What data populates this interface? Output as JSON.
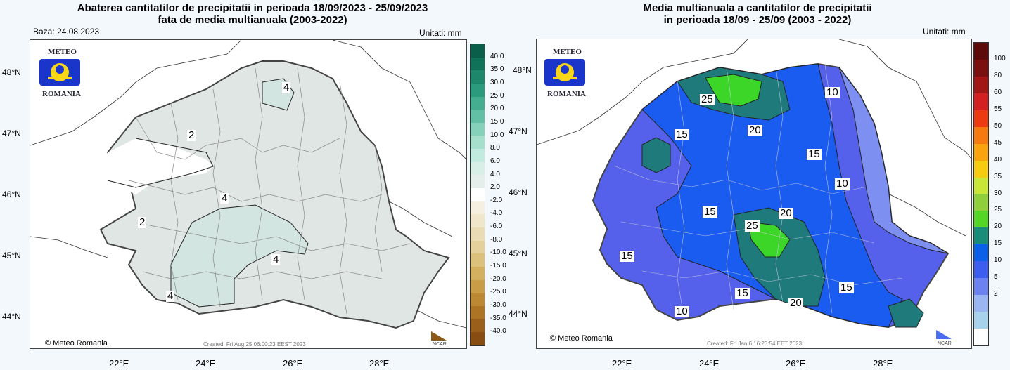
{
  "left": {
    "title_line1": "Abaterea cantitatilor de precipitatii in perioada 18/09/2023 - 25/09/2023",
    "title_line2": "fata de media multianuala (2003-2022)",
    "base": "Baza: 24.08.2023",
    "units": "Unitati: mm",
    "credit": "© Meteo Romania",
    "created": "Created: Fri Aug 25 06:00:23 EEST 2023",
    "ncar": "NCAR",
    "logo_top": "METEO",
    "logo_bottom": "ROMANIA",
    "lat_labels": [
      "48°N",
      "47°N",
      "46°N",
      "45°N",
      "44°N"
    ],
    "lon_labels": [
      "22°E",
      "24°E",
      "26°E",
      "28°E"
    ],
    "colorbar": {
      "labels": [
        "40.0",
        "35.0",
        "30.0",
        "25.0",
        "20.0",
        "15.0",
        "10.0",
        "8.0",
        "6.0",
        "4.0",
        "2.0",
        "-2.0",
        "-4.0",
        "-6.0",
        "-8.0",
        "-10.0",
        "-15.0",
        "-20.0",
        "-25.0",
        "-30.0",
        "-35.0",
        "-40.0"
      ],
      "colors": [
        "#0b5e4a",
        "#11725a",
        "#1d866b",
        "#2c9a7d",
        "#45ad90",
        "#63c0a4",
        "#85d1b9",
        "#a6dfcc",
        "#c2eade",
        "#d8efe8",
        "#e6eeec",
        "#ffffff",
        "#f4efe0",
        "#efe6cc",
        "#e9dcb4",
        "#e3d09a",
        "#dbc17c",
        "#d3b060",
        "#c99d47",
        "#bc8834",
        "#ad7426",
        "#9a5f1a",
        "#874d12"
      ]
    },
    "contour_labels": [
      "4",
      "2",
      "4",
      "4",
      "4",
      "2"
    ]
  },
  "right": {
    "title_line1": "Media multianuala a cantitatilor de precipitatii",
    "title_line2": "in perioada 18/09 - 25/09 (2003 - 2022)",
    "units": "Unitati: mm",
    "credit": "© Meteo Romania",
    "created": "Created: Fri Jan  6 16:23:54 EET 2023",
    "ncar": "NCAR",
    "logo_top": "METEO",
    "logo_bottom": "ROMANIA",
    "lat_labels": [
      "48°N",
      "47°N",
      "46°N",
      "45°N",
      "44°N"
    ],
    "lon_labels": [
      "22°E",
      "24°E",
      "26°E",
      "28°E"
    ],
    "colorbar": {
      "labels": [
        "100",
        "80",
        "60",
        "55",
        "50",
        "45",
        "40",
        "35",
        "30",
        "25",
        "20",
        "15",
        "10",
        "5",
        "2"
      ],
      "colors": [
        "#5c0a0a",
        "#7a1010",
        "#a31616",
        "#d42020",
        "#ee3a10",
        "#f77a10",
        "#f9a40f",
        "#f5cc10",
        "#c9e636",
        "#8fcf3c",
        "#55d526",
        "#1a8c7a",
        "#0a60e8",
        "#3d5cf0",
        "#6b82f0",
        "#9bb4f2",
        "#a8d2ec",
        "#ffffff"
      ]
    },
    "contour_labels": [
      "25",
      "15",
      "20",
      "10",
      "15",
      "10",
      "15",
      "25",
      "20",
      "15",
      "15",
      "20",
      "15",
      "10"
    ],
    "colors": {
      "c20": "#1f7a7c",
      "c15": "#1a5cf0",
      "c10": "#5561ea",
      "c5": "#7d8ff0",
      "c25": "#3cd628"
    }
  }
}
